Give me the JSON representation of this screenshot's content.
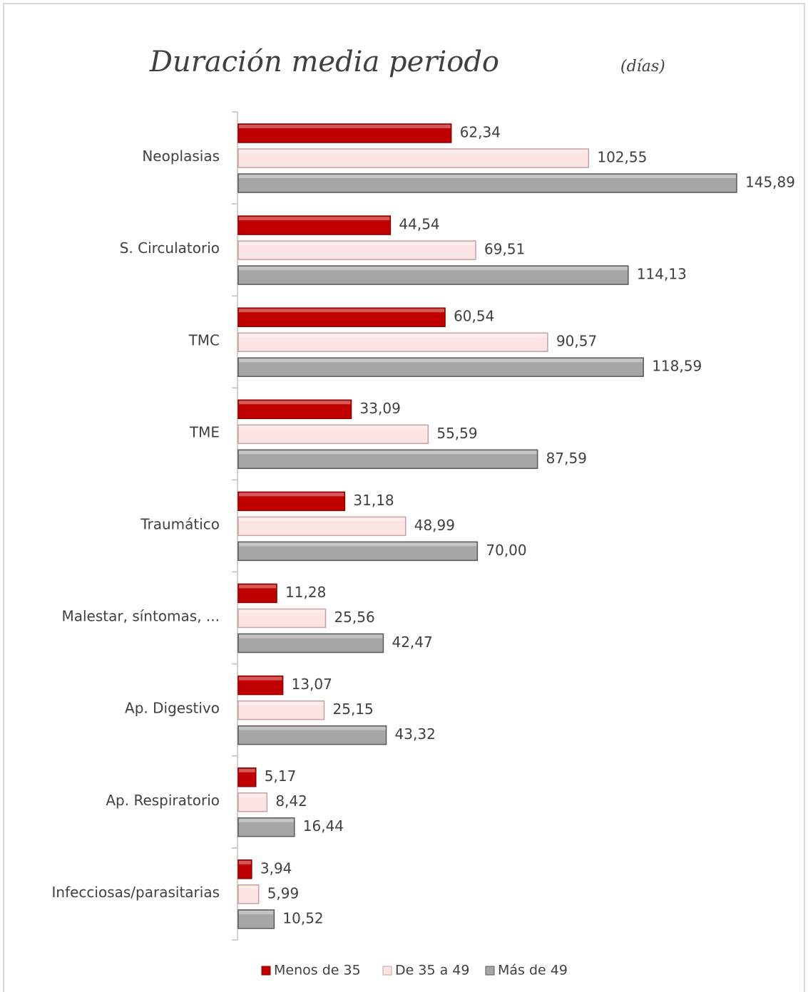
{
  "chart_data": {
    "type": "barh",
    "title": "Duración media periodo",
    "subtitle": "(días)",
    "categories": [
      "Neoplasias",
      "S. Circulatorio",
      "TMC",
      "TME",
      "Traumático",
      "Malestar, síntomas, ...",
      "Ap. Digestivo",
      "Ap. Respiratorio",
      "Infecciosas/parasitarias"
    ],
    "series": [
      {
        "name": "Menos de 35",
        "color": "#c00000",
        "values": [
          62.34,
          44.54,
          60.54,
          33.09,
          31.18,
          11.28,
          13.07,
          5.17,
          3.94
        ],
        "value_labels": [
          "62,34",
          "44,54",
          "60,54",
          "33,09",
          "31,18",
          "11,28",
          "13,07",
          "5,17",
          "3,94"
        ]
      },
      {
        "name": "De 35 a 49",
        "color": "#fce4e4",
        "values": [
          102.55,
          69.51,
          90.57,
          55.59,
          48.99,
          25.56,
          25.15,
          8.42,
          5.99
        ],
        "value_labels": [
          "102,55",
          "69,51",
          "90,57",
          "55,59",
          "48,99",
          "25,56",
          "25,15",
          "8,42",
          "5,99"
        ]
      },
      {
        "name": "Más de 49",
        "color": "#a6a6a6",
        "values": [
          145.89,
          114.13,
          118.59,
          87.59,
          70.0,
          42.47,
          43.32,
          16.44,
          10.52
        ],
        "value_labels": [
          "145,89",
          "114,13",
          "118,59",
          "87,59",
          "70,00",
          "42,47",
          "43,32",
          "16,44",
          "10,52"
        ]
      }
    ],
    "legend": "bottom"
  }
}
